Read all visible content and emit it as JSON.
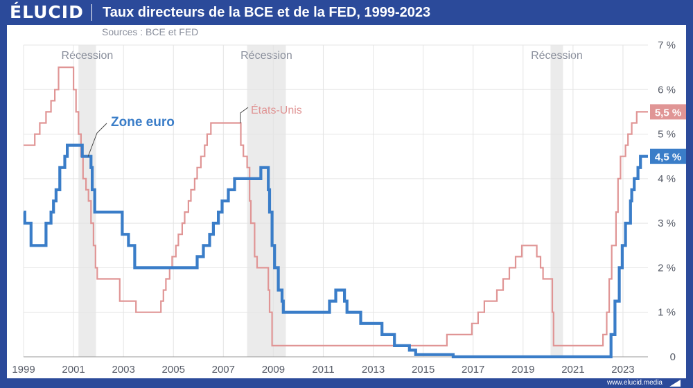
{
  "brand": {
    "logo": "ÉLUCID",
    "url": "www.elucid.media"
  },
  "header": {
    "title": "Taux directeurs de la BCE et de la FED, 1999-2023",
    "subtitle": "Sources : BCE et FED"
  },
  "colors": {
    "frame": "#2b4a9a",
    "euro": "#3a7dc8",
    "us": "#e09595",
    "recession": "#ebebeb",
    "grid": "#e4e4e4"
  },
  "chart_data": {
    "type": "line",
    "title": "Taux directeurs de la BCE et de la FED, 1999-2023",
    "xlim": [
      1999,
      2024
    ],
    "ylim": [
      0,
      7
    ],
    "x_ticks": [
      1999,
      2001,
      2003,
      2005,
      2007,
      2009,
      2011,
      2013,
      2015,
      2017,
      2019,
      2021,
      2023
    ],
    "y_ticks": [
      {
        "v": 0,
        "label": "0"
      },
      {
        "v": 1,
        "label": "1 %"
      },
      {
        "v": 2,
        "label": "2 %"
      },
      {
        "v": 3,
        "label": "3 %"
      },
      {
        "v": 4,
        "label": "4 %"
      },
      {
        "v": 5,
        "label": "5 %"
      },
      {
        "v": 6,
        "label": "6 %"
      },
      {
        "v": 7,
        "label": "7 %"
      }
    ],
    "recessions": [
      {
        "label": "Récession",
        "start": 2001.2,
        "end": 2001.9
      },
      {
        "label": "Récession",
        "start": 2007.95,
        "end": 2009.5
      },
      {
        "label": "Récession",
        "start": 2020.1,
        "end": 2020.6
      }
    ],
    "series": [
      {
        "name": "États-Unis",
        "final_label": "5,5 %",
        "points": [
          [
            1999,
            4.75
          ],
          [
            1999.45,
            5.0
          ],
          [
            1999.65,
            5.25
          ],
          [
            1999.9,
            5.5
          ],
          [
            2000.1,
            5.75
          ],
          [
            2000.25,
            6.0
          ],
          [
            2000.4,
            6.5
          ],
          [
            2001.0,
            6.0
          ],
          [
            2001.1,
            5.5
          ],
          [
            2001.2,
            5.0
          ],
          [
            2001.3,
            4.5
          ],
          [
            2001.38,
            4.0
          ],
          [
            2001.5,
            3.75
          ],
          [
            2001.6,
            3.5
          ],
          [
            2001.7,
            3.0
          ],
          [
            2001.8,
            2.5
          ],
          [
            2001.88,
            2.0
          ],
          [
            2001.95,
            1.75
          ],
          [
            2002.85,
            1.25
          ],
          [
            2003.5,
            1.0
          ],
          [
            2004.5,
            1.25
          ],
          [
            2004.6,
            1.5
          ],
          [
            2004.7,
            1.75
          ],
          [
            2004.85,
            2.0
          ],
          [
            2004.95,
            2.25
          ],
          [
            2005.1,
            2.5
          ],
          [
            2005.2,
            2.75
          ],
          [
            2005.35,
            3.0
          ],
          [
            2005.45,
            3.25
          ],
          [
            2005.6,
            3.5
          ],
          [
            2005.7,
            3.75
          ],
          [
            2005.85,
            4.0
          ],
          [
            2005.95,
            4.25
          ],
          [
            2006.1,
            4.5
          ],
          [
            2006.25,
            4.75
          ],
          [
            2006.35,
            5.0
          ],
          [
            2006.5,
            5.25
          ],
          [
            2007.7,
            4.75
          ],
          [
            2007.8,
            4.5
          ],
          [
            2007.95,
            4.25
          ],
          [
            2008.05,
            3.5
          ],
          [
            2008.1,
            3.0
          ],
          [
            2008.25,
            2.25
          ],
          [
            2008.35,
            2.0
          ],
          [
            2008.8,
            1.5
          ],
          [
            2008.85,
            1.0
          ],
          [
            2008.95,
            0.25
          ],
          [
            2015.95,
            0.5
          ],
          [
            2016.95,
            0.75
          ],
          [
            2017.2,
            1.0
          ],
          [
            2017.45,
            1.25
          ],
          [
            2017.95,
            1.5
          ],
          [
            2018.2,
            1.75
          ],
          [
            2018.45,
            2.0
          ],
          [
            2018.7,
            2.25
          ],
          [
            2018.95,
            2.5
          ],
          [
            2019.55,
            2.25
          ],
          [
            2019.7,
            2.0
          ],
          [
            2019.8,
            1.75
          ],
          [
            2020.17,
            1.0
          ],
          [
            2020.22,
            0.25
          ],
          [
            2022.2,
            0.5
          ],
          [
            2022.35,
            1.0
          ],
          [
            2022.45,
            1.75
          ],
          [
            2022.55,
            2.5
          ],
          [
            2022.72,
            3.25
          ],
          [
            2022.8,
            4.0
          ],
          [
            2022.9,
            4.5
          ],
          [
            2023.1,
            4.75
          ],
          [
            2023.2,
            5.0
          ],
          [
            2023.35,
            5.25
          ],
          [
            2023.55,
            5.5
          ],
          [
            2024.0,
            5.5
          ]
        ]
      },
      {
        "name": "Zone euro",
        "final_label": "4,5 %",
        "points": [
          [
            1999,
            3.25
          ],
          [
            1999.05,
            3.0
          ],
          [
            1999.3,
            2.5
          ],
          [
            1999.9,
            3.0
          ],
          [
            2000.1,
            3.25
          ],
          [
            2000.2,
            3.5
          ],
          [
            2000.3,
            3.75
          ],
          [
            2000.45,
            4.25
          ],
          [
            2000.65,
            4.5
          ],
          [
            2000.75,
            4.75
          ],
          [
            2001.35,
            4.5
          ],
          [
            2001.7,
            4.25
          ],
          [
            2001.75,
            3.75
          ],
          [
            2001.85,
            3.25
          ],
          [
            2002.95,
            2.75
          ],
          [
            2003.2,
            2.5
          ],
          [
            2003.45,
            2.0
          ],
          [
            2005.95,
            2.25
          ],
          [
            2006.2,
            2.5
          ],
          [
            2006.45,
            2.75
          ],
          [
            2006.6,
            3.0
          ],
          [
            2006.8,
            3.25
          ],
          [
            2006.95,
            3.5
          ],
          [
            2007.2,
            3.75
          ],
          [
            2007.45,
            4.0
          ],
          [
            2008.5,
            4.25
          ],
          [
            2008.8,
            3.75
          ],
          [
            2008.85,
            3.25
          ],
          [
            2008.95,
            2.5
          ],
          [
            2009.05,
            2.0
          ],
          [
            2009.2,
            1.5
          ],
          [
            2009.35,
            1.25
          ],
          [
            2009.4,
            1.0
          ],
          [
            2011.25,
            1.25
          ],
          [
            2011.5,
            1.5
          ],
          [
            2011.85,
            1.25
          ],
          [
            2011.95,
            1.0
          ],
          [
            2012.5,
            0.75
          ],
          [
            2013.35,
            0.5
          ],
          [
            2013.85,
            0.25
          ],
          [
            2014.45,
            0.15
          ],
          [
            2014.7,
            0.05
          ],
          [
            2016.2,
            0.0
          ],
          [
            2022.52,
            0.5
          ],
          [
            2022.68,
            1.25
          ],
          [
            2022.85,
            2.0
          ],
          [
            2022.97,
            2.5
          ],
          [
            2023.1,
            3.0
          ],
          [
            2023.3,
            3.5
          ],
          [
            2023.35,
            3.75
          ],
          [
            2023.45,
            4.0
          ],
          [
            2023.6,
            4.25
          ],
          [
            2023.7,
            4.5
          ],
          [
            2024.0,
            4.5
          ]
        ]
      }
    ],
    "annotations": [
      {
        "text": "Zone euro",
        "series": "Zone euro"
      },
      {
        "text": "États-Unis",
        "series": "États-Unis"
      }
    ]
  }
}
